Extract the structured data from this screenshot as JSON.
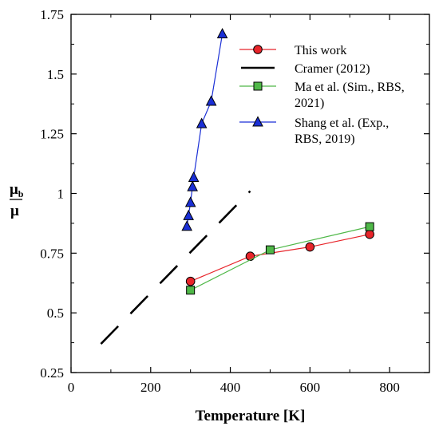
{
  "chart_data": {
    "type": "line",
    "xlabel": "Temperature [K]",
    "ylabel_numerator": "μ",
    "ylabel_subscript": "b",
    "ylabel_denominator": "μ",
    "xlim": [
      0,
      900
    ],
    "ylim": [
      0.25,
      1.75
    ],
    "xticks": [
      0,
      200,
      400,
      600,
      800
    ],
    "xtick_labels": [
      "0",
      "200",
      "400",
      "600",
      "800"
    ],
    "yticks": [
      0.25,
      0.5,
      0.75,
      1,
      1.25,
      1.5,
      1.75
    ],
    "ytick_labels": [
      "0.25",
      "0.5",
      "0.75",
      "1",
      "1.25",
      "1.5",
      "1.75"
    ],
    "grid": false,
    "legend_position": "top-right",
    "series": [
      {
        "name": "This work",
        "color": "#e8242a",
        "marker": "circle",
        "marker_fill": "#e8242a",
        "line_style": "solid",
        "x": [
          300,
          450,
          600,
          750
        ],
        "y": [
          0.632,
          0.737,
          0.776,
          0.829
        ]
      },
      {
        "name": "Cramer (2012)",
        "color": "#000000",
        "marker": "none",
        "line_style": "long-dash",
        "x": [
          75,
          450
        ],
        "y": [
          0.37,
          1.01
        ]
      },
      {
        "name": "Ma et al. (Sim., RBS, 2021)",
        "name_lines": [
          "Ma et al. (Sim., RBS,",
          "2021)"
        ],
        "color": "#4fb848",
        "marker": "square",
        "marker_fill": "#4fb848",
        "line_style": "solid",
        "x": [
          300,
          500,
          750
        ],
        "y": [
          0.595,
          0.764,
          0.861
        ]
      },
      {
        "name": "Shang et al. (Exp., RBS, 2019)",
        "name_lines": [
          "Shang et al. (Exp.,",
          "RBS, 2019)"
        ],
        "color": "#1a2fd6",
        "marker": "triangle",
        "marker_fill": "#1a2fd6",
        "line_style": "solid",
        "x": [
          291,
          295,
          300,
          305,
          308,
          328,
          352,
          380
        ],
        "y": [
          0.862,
          0.907,
          0.962,
          1.028,
          1.067,
          1.292,
          1.386,
          1.668
        ]
      }
    ]
  }
}
